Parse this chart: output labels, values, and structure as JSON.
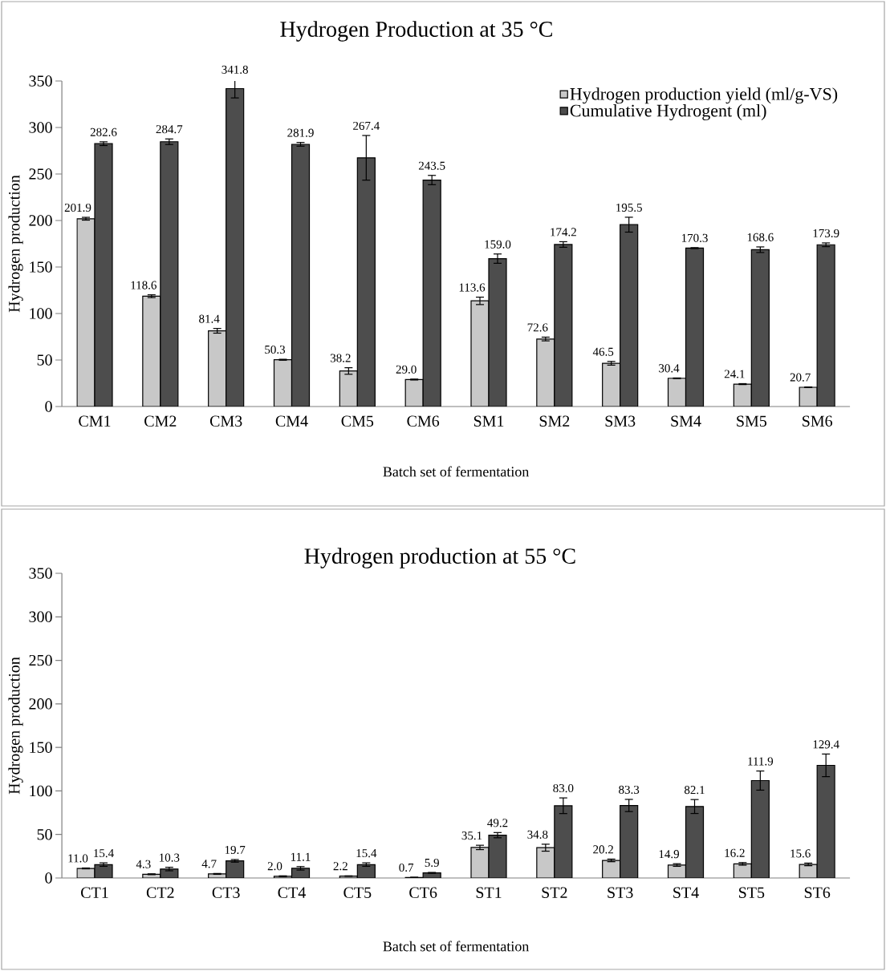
{
  "chart_data": [
    {
      "type": "bar",
      "title": "Hydrogen Production at 35 °C",
      "xlabel": "Batch set of fermentation",
      "ylabel": "Hydrogen production",
      "categories": [
        "CM1",
        "CM2",
        "CM3",
        "CM4",
        "CM5",
        "CM6",
        "SM1",
        "SM2",
        "SM3",
        "SM4",
        "SM5",
        "SM6"
      ],
      "series": [
        {
          "name": "Hydrogen production yield (ml/g-VS)",
          "color": "#c8c8c8",
          "values": [
            201.9,
            118.6,
            81.4,
            50.3,
            38.2,
            29.0,
            113.6,
            72.6,
            46.5,
            30.4,
            24.1,
            20.7
          ],
          "errors": [
            1.5,
            1.5,
            2.5,
            0.5,
            3.5,
            0.5,
            4,
            2,
            2,
            0.3,
            0.5,
            0.3
          ],
          "value_labels": [
            "201.9",
            "118.6",
            "81.4",
            "50.3",
            "38.2",
            "29.0",
            "113.6",
            "72.6",
            "46.5",
            "30.4",
            "24.1",
            "20.7"
          ]
        },
        {
          "name": "Cumulative Hydrogent (ml)",
          "color": "#4d4d4d",
          "values": [
            282.6,
            284.7,
            341.8,
            281.9,
            267.4,
            243.5,
            159.0,
            174.2,
            195.5,
            170.3,
            168.6,
            173.9
          ],
          "errors": [
            2,
            3,
            10,
            2,
            24,
            5,
            5,
            3,
            8,
            0.5,
            3,
            2
          ],
          "value_labels": [
            "282.6",
            "284.7",
            "341.8",
            "281.9",
            "267.4",
            "243.5",
            "159.0",
            "174.2",
            "195.5",
            "170.3",
            "168.6",
            "173.9"
          ]
        }
      ],
      "ylim": [
        0,
        350
      ],
      "yticks": [
        0,
        50,
        100,
        150,
        200,
        250,
        300,
        350
      ],
      "legend": "top right"
    },
    {
      "type": "bar",
      "title": "Hydrogen production  at 55 °C",
      "xlabel": "Batch set of fermentation",
      "ylabel": "Hydrogen production",
      "categories": [
        "CT1",
        "CT2",
        "CT3",
        "CT4",
        "CT5",
        "CT6",
        "ST1",
        "ST2",
        "ST3",
        "ST4",
        "ST5",
        "ST6"
      ],
      "series": [
        {
          "color": "#c8c8c8",
          "values": [
            11.0,
            4.3,
            4.7,
            2.0,
            2.2,
            0.7,
            35.1,
            34.8,
            20.2,
            14.9,
            16.2,
            15.6
          ],
          "errors": [
            0.5,
            0.5,
            0.5,
            0.5,
            0.3,
            0.2,
            2.5,
            4,
            1.5,
            1.5,
            1.5,
            1.5
          ],
          "value_labels": [
            "11.0",
            "4.3",
            "4.7",
            "2.0",
            "2.2",
            "0.7",
            "35.1",
            "34.8",
            "20.2",
            "14.9",
            "16.2",
            "15.6"
          ]
        },
        {
          "color": "#4d4d4d",
          "values": [
            15.4,
            10.3,
            19.7,
            11.1,
            15.4,
            5.9,
            49.2,
            83.0,
            83.3,
            82.1,
            111.9,
            129.4
          ],
          "errors": [
            2,
            2,
            1.5,
            2,
            2,
            0.5,
            3,
            9,
            7,
            8,
            11,
            13
          ],
          "value_labels": [
            "15.4",
            "10.3",
            "19.7",
            "11.1",
            "15.4",
            "5.9",
            "49.2",
            "83.0",
            "83.3",
            "82.1",
            "111.9",
            "129.4"
          ]
        }
      ],
      "ylim": [
        0,
        350
      ],
      "yticks": [
        0,
        50,
        100,
        150,
        200,
        250,
        300,
        350
      ]
    }
  ]
}
